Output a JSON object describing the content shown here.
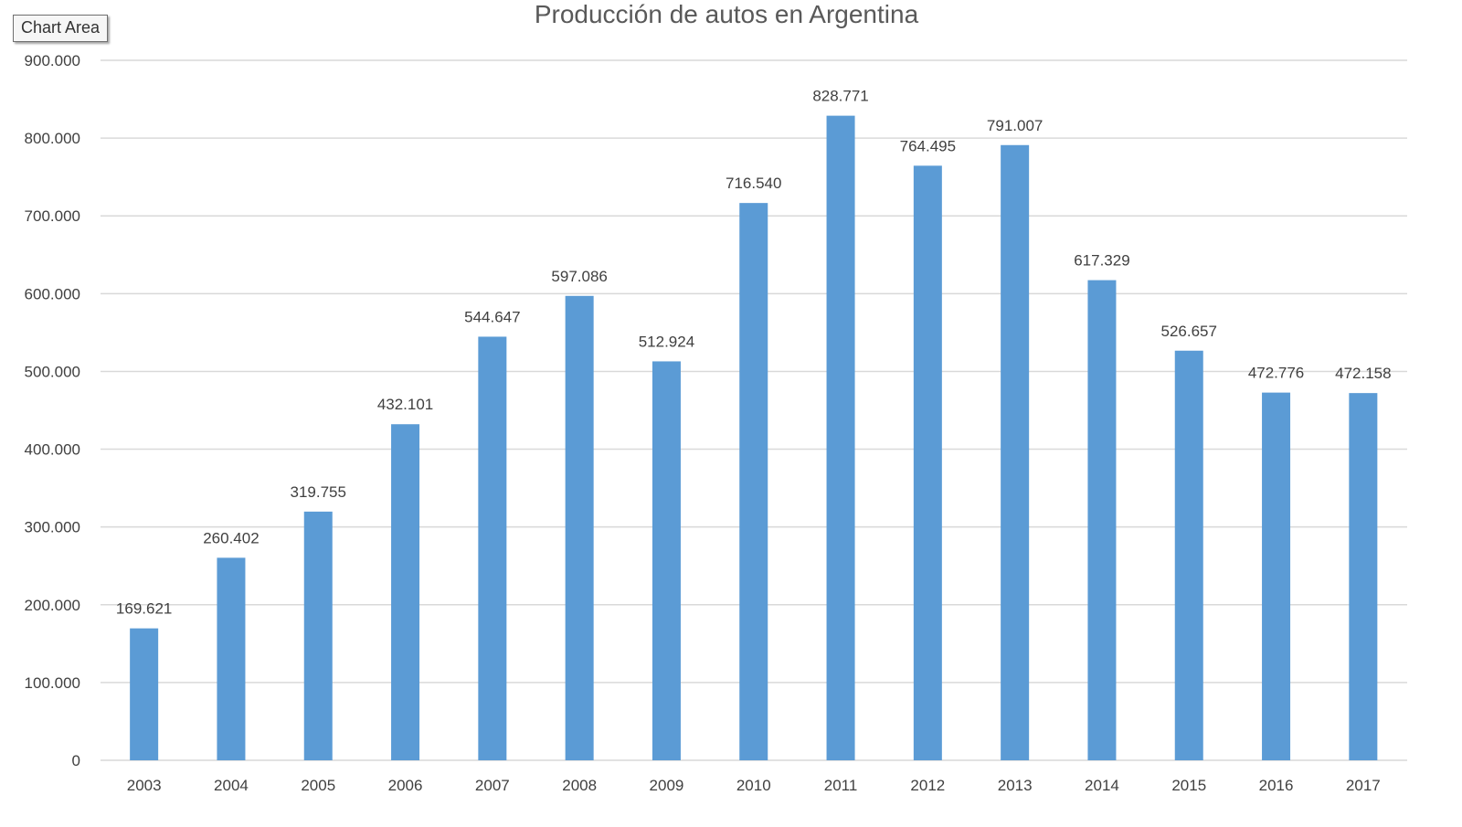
{
  "tooltip": {
    "label": "Chart Area"
  },
  "colors": {
    "bar": "#5b9bd5",
    "grid": "#d9d9d9",
    "text": "#404040",
    "title": "#595959"
  },
  "chart_data": {
    "type": "bar",
    "title": "Producción de autos en Argentina",
    "xlabel": "",
    "ylabel": "",
    "categories": [
      "2003",
      "2004",
      "2005",
      "2006",
      "2007",
      "2008",
      "2009",
      "2010",
      "2011",
      "2012",
      "2013",
      "2014",
      "2015",
      "2016",
      "2017"
    ],
    "series": [
      {
        "values": [
          169621,
          260402,
          319755,
          432101,
          544647,
          597086,
          512924,
          716540,
          828771,
          764495,
          791007,
          617329,
          526657,
          472776,
          472158
        ],
        "data_labels": [
          "169.621",
          "260.402",
          "319.755",
          "432.101",
          "544.647",
          "597.086",
          "512.924",
          "716.540",
          "828.771",
          "764.495",
          "791.007",
          "617.329",
          "526.657",
          "472.776",
          "472.158"
        ]
      }
    ],
    "ylim": [
      0,
      900000
    ],
    "yticks": [
      0,
      100000,
      200000,
      300000,
      400000,
      500000,
      600000,
      700000,
      800000,
      900000
    ],
    "ytick_labels": [
      "0",
      "100.000",
      "200.000",
      "300.000",
      "400.000",
      "500.000",
      "600.000",
      "700.000",
      "800.000",
      "900.000"
    ],
    "grid": true,
    "legend": "none"
  }
}
